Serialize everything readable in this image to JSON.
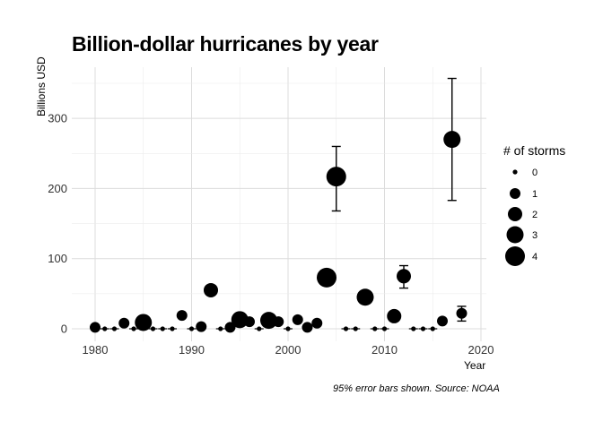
{
  "chart_data": {
    "type": "scatter",
    "title": "Billion-dollar hurricanes by year",
    "xlabel": "Year",
    "ylabel": "Billions USD",
    "caption": "95% error bars shown.  Source: NOAA",
    "xlim": [
      1980,
      2020
    ],
    "ylim": [
      0,
      350
    ],
    "xticks": [
      1980,
      1990,
      2000,
      2010,
      2020
    ],
    "yticks": [
      0,
      100,
      200,
      300
    ],
    "grid": true,
    "legend": {
      "title": "# of storms",
      "position": "right",
      "entries": [
        {
          "label": "0",
          "value": 0
        },
        {
          "label": "1",
          "value": 1
        },
        {
          "label": "2",
          "value": 2
        },
        {
          "label": "3",
          "value": 3
        },
        {
          "label": "4",
          "value": 4
        }
      ]
    },
    "points": [
      {
        "year": 1980,
        "cost": 2,
        "storms": 1
      },
      {
        "year": 1981,
        "cost": 0,
        "storms": 0
      },
      {
        "year": 1982,
        "cost": 0,
        "storms": 0
      },
      {
        "year": 1983,
        "cost": 8,
        "storms": 1
      },
      {
        "year": 1984,
        "cost": 0,
        "storms": 0
      },
      {
        "year": 1985,
        "cost": 9,
        "storms": 3
      },
      {
        "year": 1986,
        "cost": 0,
        "storms": 0
      },
      {
        "year": 1987,
        "cost": 0,
        "storms": 0
      },
      {
        "year": 1988,
        "cost": 0,
        "storms": 0
      },
      {
        "year": 1989,
        "cost": 19,
        "storms": 1
      },
      {
        "year": 1990,
        "cost": 0,
        "storms": 0
      },
      {
        "year": 1991,
        "cost": 3,
        "storms": 1
      },
      {
        "year": 1992,
        "cost": 55,
        "storms": 2,
        "low": 48,
        "high": 62
      },
      {
        "year": 1993,
        "cost": 0,
        "storms": 0
      },
      {
        "year": 1994,
        "cost": 2,
        "storms": 1
      },
      {
        "year": 1995,
        "cost": 13,
        "storms": 3
      },
      {
        "year": 1996,
        "cost": 10,
        "storms": 1
      },
      {
        "year": 1997,
        "cost": 0,
        "storms": 0
      },
      {
        "year": 1998,
        "cost": 12,
        "storms": 3
      },
      {
        "year": 1999,
        "cost": 10,
        "storms": 1
      },
      {
        "year": 2000,
        "cost": 0,
        "storms": 0
      },
      {
        "year": 2001,
        "cost": 13,
        "storms": 1
      },
      {
        "year": 2002,
        "cost": 2,
        "storms": 1
      },
      {
        "year": 2003,
        "cost": 8,
        "storms": 1
      },
      {
        "year": 2004,
        "cost": 73,
        "storms": 4
      },
      {
        "year": 2005,
        "cost": 217,
        "storms": 4,
        "low": 168,
        "high": 260
      },
      {
        "year": 2006,
        "cost": 0,
        "storms": 0
      },
      {
        "year": 2007,
        "cost": 0,
        "storms": 0
      },
      {
        "year": 2008,
        "cost": 45,
        "storms": 3
      },
      {
        "year": 2009,
        "cost": 0,
        "storms": 0
      },
      {
        "year": 2010,
        "cost": 0,
        "storms": 0
      },
      {
        "year": 2011,
        "cost": 18,
        "storms": 2
      },
      {
        "year": 2012,
        "cost": 75,
        "storms": 2,
        "low": 58,
        "high": 90
      },
      {
        "year": 2013,
        "cost": 0,
        "storms": 0
      },
      {
        "year": 2014,
        "cost": 0,
        "storms": 0
      },
      {
        "year": 2015,
        "cost": 0,
        "storms": 0
      },
      {
        "year": 2016,
        "cost": 11,
        "storms": 1
      },
      {
        "year": 2017,
        "cost": 270,
        "storms": 3,
        "low": 183,
        "high": 357
      },
      {
        "year": 2018,
        "cost": 22,
        "storms": 1,
        "low": 11,
        "high": 32
      }
    ]
  }
}
